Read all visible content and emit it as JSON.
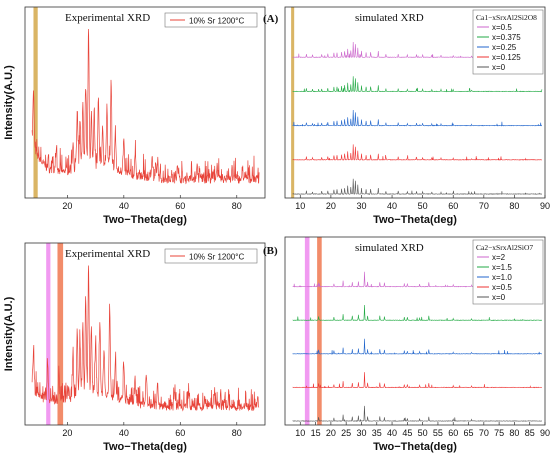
{
  "chart_data": [
    {
      "type": "line",
      "title": "Experimental XRD",
      "xlabel": "Two−Theta(deg)",
      "ylabel": "Intensity(A.U.)",
      "xlim": [
        5,
        90
      ],
      "xticks": [
        20,
        40,
        60,
        80
      ],
      "highlight_bands": [
        {
          "x_range": [
            8,
            9.5
          ],
          "color": "#d4a84a"
        }
      ],
      "series": [
        {
          "name": "10% Sr 1200°C",
          "color": "#e8443a",
          "peaks": [
            [
              8,
              0.38
            ],
            [
              16,
              0.12
            ],
            [
              22,
              0.2
            ],
            [
              23.5,
              0.42
            ],
            [
              24.5,
              0.3
            ],
            [
              25.5,
              0.45
            ],
            [
              26.5,
              0.6
            ],
            [
              27.5,
              1.0
            ],
            [
              28.5,
              0.38
            ],
            [
              29.5,
              0.35
            ],
            [
              31,
              0.52
            ],
            [
              32.5,
              0.3
            ],
            [
              34,
              0.42
            ],
            [
              35.5,
              0.62
            ],
            [
              37,
              0.28
            ],
            [
              40,
              0.22
            ],
            [
              44,
              0.15
            ],
            [
              50,
              0.18
            ],
            [
              52,
              0.12
            ],
            [
              59,
              0.12
            ],
            [
              66,
              0.08
            ],
            [
              73,
              0.1
            ]
          ]
        }
      ]
    },
    {
      "type": "line",
      "panel_label": "(A)",
      "title": "simulated XRD",
      "xlabel": "Two−Theta(deg)",
      "xlim": [
        5,
        90
      ],
      "xticks": [
        10,
        20,
        30,
        40,
        50,
        60,
        70,
        80,
        90
      ],
      "highlight_bands": [
        {
          "x_range": [
            7,
            8
          ],
          "color": "#d4a84a"
        }
      ],
      "legend_title": "Ca1−xSrxAl2Si2O8",
      "series": [
        {
          "name": "x=0.5",
          "color": "#cc66cc"
        },
        {
          "name": "x=0.375",
          "color": "#22aa44"
        },
        {
          "name": "x=0.25",
          "color": "#2266cc"
        },
        {
          "name": "x=0.125",
          "color": "#ee3333"
        },
        {
          "name": "x=0",
          "color": "#555555"
        }
      ],
      "peaks": [
        [
          12,
          0.2
        ],
        [
          14,
          0.15
        ],
        [
          17,
          0.18
        ],
        [
          19,
          0.22
        ],
        [
          21,
          0.28
        ],
        [
          22,
          0.3
        ],
        [
          23.5,
          0.35
        ],
        [
          24.5,
          0.4
        ],
        [
          25.5,
          0.55
        ],
        [
          26.5,
          0.45
        ],
        [
          27.3,
          1.0
        ],
        [
          28,
          0.85
        ],
        [
          28.8,
          0.6
        ],
        [
          30,
          0.4
        ],
        [
          31.5,
          0.3
        ],
        [
          33,
          0.32
        ],
        [
          35.5,
          0.4
        ],
        [
          38,
          0.18
        ],
        [
          42,
          0.2
        ],
        [
          45,
          0.15
        ],
        [
          48,
          0.17
        ],
        [
          50,
          0.15
        ],
        [
          53,
          0.14
        ],
        [
          56,
          0.12
        ],
        [
          60,
          0.1
        ],
        [
          66,
          0.08
        ]
      ]
    },
    {
      "type": "line",
      "title": "Experimental XRD",
      "xlabel": "Two−Theta(deg)",
      "ylabel": "Intensity(A.U.)",
      "xlim": [
        5,
        90
      ],
      "xticks": [
        20,
        40,
        60,
        80
      ],
      "highlight_bands": [
        {
          "x_range": [
            12.5,
            14
          ],
          "color": "#ee88ee"
        },
        {
          "x_range": [
            16.5,
            18.5
          ],
          "color": "#f07850"
        }
      ],
      "series": [
        {
          "name": "10% Sr 1200°C",
          "color": "#e8443a",
          "peaks": [
            [
              8,
              0.3
            ],
            [
              13,
              0.28
            ],
            [
              17,
              0.25
            ],
            [
              22,
              0.35
            ],
            [
              23.5,
              0.5
            ],
            [
              24.5,
              0.4
            ],
            [
              25.5,
              0.55
            ],
            [
              26.5,
              0.75
            ],
            [
              27.5,
              1.0
            ],
            [
              28.5,
              0.5
            ],
            [
              30,
              0.4
            ],
            [
              31.5,
              0.55
            ],
            [
              33,
              0.35
            ],
            [
              35,
              0.68
            ],
            [
              37,
              0.3
            ],
            [
              40,
              0.28
            ],
            [
              44,
              0.2
            ],
            [
              48,
              0.22
            ],
            [
              52,
              0.15
            ],
            [
              58,
              0.12
            ],
            [
              63,
              0.1
            ],
            [
              72,
              0.09
            ]
          ]
        }
      ]
    },
    {
      "type": "line",
      "panel_label": "(B)",
      "title": "simulated XRD",
      "xlabel": "Two−Theta(deg)",
      "xlim": [
        5,
        90
      ],
      "xticks": [
        10,
        15,
        20,
        25,
        30,
        35,
        40,
        45,
        50,
        55,
        60,
        65,
        70,
        75,
        80,
        85,
        90
      ],
      "highlight_bands": [
        {
          "x_range": [
            11.5,
            13
          ],
          "color": "#ee88ee"
        },
        {
          "x_range": [
            15.5,
            17
          ],
          "color": "#f07850"
        }
      ],
      "legend_title": "Ca2−xSrxAl2SiO7",
      "series": [
        {
          "name": "x=2",
          "color": "#cc66cc"
        },
        {
          "name": "x=1.5",
          "color": "#22aa44"
        },
        {
          "name": "x=1.0",
          "color": "#2266cc"
        },
        {
          "name": "x=0.5",
          "color": "#ee3333"
        },
        {
          "name": "x=0",
          "color": "#555555"
        }
      ],
      "peaks": [
        [
          16,
          0.25
        ],
        [
          21,
          0.2
        ],
        [
          24,
          0.4
        ],
        [
          27,
          0.3
        ],
        [
          29,
          0.35
        ],
        [
          31,
          1.0
        ],
        [
          32,
          0.3
        ],
        [
          36,
          0.3
        ],
        [
          37.5,
          0.25
        ],
        [
          44,
          0.2
        ],
        [
          45,
          0.18
        ],
        [
          49,
          0.15
        ],
        [
          52,
          0.28
        ],
        [
          60,
          0.12
        ],
        [
          66,
          0.1
        ]
      ]
    }
  ]
}
